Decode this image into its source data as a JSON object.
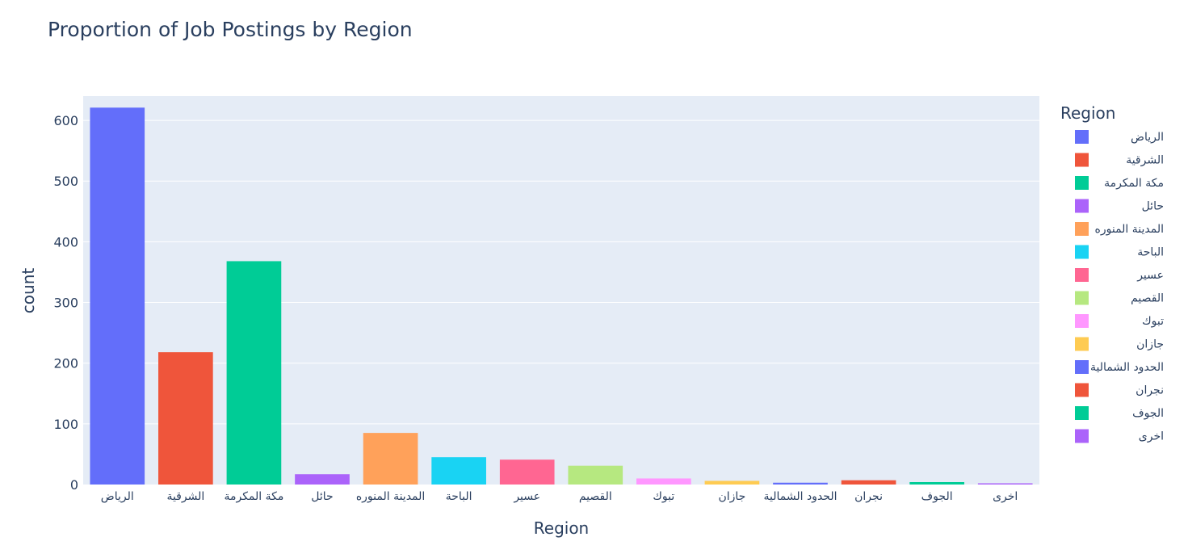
{
  "chart_data": {
    "type": "bar",
    "title": "Proportion of Job Postings by Region",
    "xlabel": "Region",
    "ylabel": "count",
    "ylim": [
      0,
      640
    ],
    "yticks": [
      0,
      100,
      200,
      300,
      400,
      500,
      600
    ],
    "grid": true,
    "legend": {
      "title": "Region",
      "placement": "right"
    },
    "categories": [
      "الرياض",
      "الشرقية",
      "مكة المكرمة",
      "حائل",
      "المدينة المنوره",
      "الباحة",
      "عسير",
      "القصيم",
      "تبوك",
      "جازان",
      "الحدود الشمالية",
      "نجران",
      "الجوف",
      "اخرى"
    ],
    "values": [
      621,
      218,
      368,
      17,
      85,
      45,
      41,
      31,
      10,
      6,
      3,
      7,
      4,
      2
    ],
    "colors": [
      "#636efa",
      "#EF553B",
      "#00cc96",
      "#ab63fa",
      "#FFA15A",
      "#19d3f3",
      "#FF6692",
      "#B6E880",
      "#FF97FF",
      "#FECB52",
      "#636efa",
      "#EF553B",
      "#00cc96",
      "#ab63fa"
    ]
  }
}
